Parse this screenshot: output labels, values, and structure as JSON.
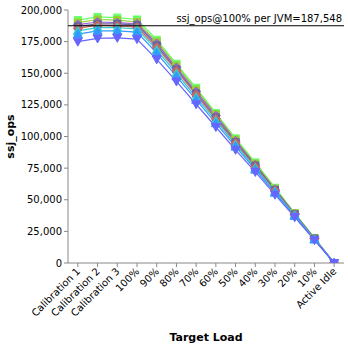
{
  "chart_data": {
    "type": "line",
    "x_label": "Target Load",
    "y_label": "ssj_ops",
    "categories": [
      "Calibration 1",
      "Calibration 2",
      "Calibration 3",
      "100%",
      "90%",
      "80%",
      "70%",
      "60%",
      "50%",
      "40%",
      "30%",
      "20%",
      "10%",
      "Active Idle"
    ],
    "ylim": [
      0,
      200000
    ],
    "yticks": [
      0,
      {
        "value": 25000,
        "label": "25,000"
      },
      {
        "value": 50000,
        "label": "50,000"
      },
      {
        "value": 75000,
        "label": "75,000"
      },
      {
        "value": 100000,
        "label": "100,000"
      },
      {
        "value": 125000,
        "label": "125,000"
      },
      {
        "value": 150000,
        "label": "150,000"
      },
      {
        "value": 175000,
        "label": "175,000"
      },
      {
        "value": 200000,
        "label": "200,000"
      }
    ],
    "grid": false,
    "annotations": [
      {
        "text": "ssj_ops@100% per JVM=187,548",
        "y": 187548
      }
    ],
    "series": [
      {
        "color": "#66ff66",
        "marker": "square",
        "values": [
          192000,
          194500,
          194000,
          192500,
          176500,
          157500,
          138500,
          118500,
          98500,
          79500,
          59500,
          39500,
          19800,
          0
        ]
      },
      {
        "color": "#99cc33",
        "marker": "square",
        "values": [
          190000,
          192500,
          192000,
          190500,
          175000,
          156000,
          137000,
          117500,
          97500,
          78500,
          58800,
          39200,
          19600,
          0
        ]
      },
      {
        "color": "#9966cc",
        "marker": "diamond",
        "values": [
          188500,
          190500,
          190000,
          189000,
          173500,
          154500,
          135500,
          116500,
          96500,
          77500,
          58200,
          38800,
          19400,
          0
        ]
      },
      {
        "color": "#666699",
        "marker": "square",
        "values": [
          187000,
          189000,
          189000,
          188000,
          172000,
          153000,
          134000,
          115000,
          95500,
          77000,
          57800,
          38500,
          19300,
          0
        ]
      },
      {
        "color": "#cc6666",
        "marker": "diamond",
        "values": [
          185500,
          188000,
          187500,
          186500,
          170500,
          152000,
          133000,
          114000,
          95000,
          76000,
          57200,
          38200,
          19100,
          0
        ]
      },
      {
        "color": "#33cccc",
        "marker": "triangle",
        "values": [
          183500,
          186000,
          186000,
          185000,
          168500,
          150000,
          131000,
          112500,
          93500,
          75000,
          56500,
          37800,
          18900,
          0
        ]
      },
      {
        "color": "#3399ff",
        "marker": "triangle",
        "values": [
          181000,
          183500,
          183500,
          182500,
          166000,
          147500,
          129000,
          110500,
          92000,
          73800,
          55500,
          37200,
          18600,
          0
        ]
      },
      {
        "color": "#6666ff",
        "marker": "triangle-down",
        "values": [
          175000,
          177500,
          178000,
          177000,
          161000,
          143500,
          125500,
          107500,
          89500,
          72000,
          54000,
          36200,
          18100,
          0
        ]
      }
    ]
  }
}
